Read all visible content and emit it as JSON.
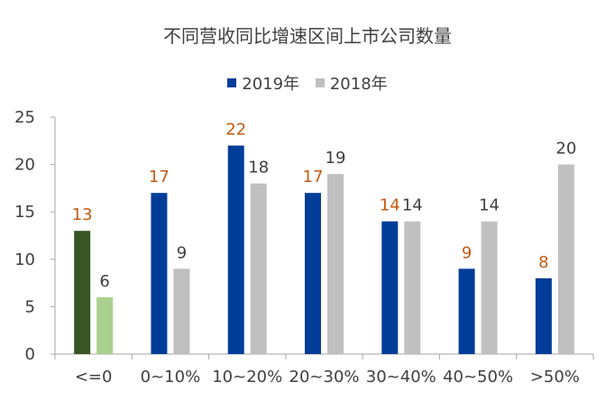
{
  "chart_data": {
    "type": "bar",
    "title": "不同营收同比增速区间上市公司数量",
    "categories": [
      "<=0",
      "0~10%",
      "10~20%",
      "20~30%",
      "30~40%",
      "40~50%",
      ">50%"
    ],
    "series": [
      {
        "name": "2019年",
        "values": [
          13,
          17,
          22,
          17,
          14,
          9,
          8
        ],
        "color": "#003d99",
        "label_color": "#c55a11"
      },
      {
        "name": "2018年",
        "values": [
          6,
          9,
          18,
          19,
          14,
          14,
          20
        ],
        "color": "#c0c0c0",
        "label_color": "#404040"
      }
    ],
    "highlight": {
      "category_index": 0,
      "colors": [
        "#375623",
        "#a9d18e"
      ]
    },
    "yticks": [
      0,
      5,
      10,
      15,
      20,
      25
    ],
    "ylim": [
      0,
      25
    ],
    "grid": false,
    "legend_position": "top"
  }
}
